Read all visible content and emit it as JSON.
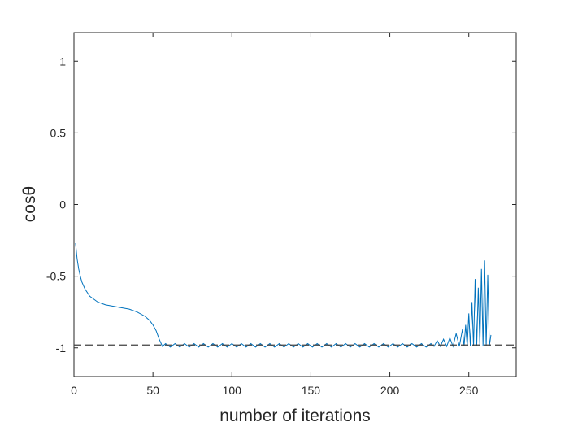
{
  "chart_data": {
    "type": "line",
    "xlabel": "number of iterations",
    "ylabel": "cosθ",
    "xlim": [
      0,
      280
    ],
    "ylim": [
      -1.2,
      1.2
    ],
    "xticks": [
      0,
      50,
      100,
      150,
      200,
      250
    ],
    "yticks": [
      -1,
      -0.5,
      0,
      0.5,
      1
    ],
    "reference_line": {
      "y": -0.98,
      "color": "#404040"
    },
    "x": [
      1,
      2,
      3,
      4,
      5,
      7,
      10,
      15,
      20,
      25,
      30,
      35,
      40,
      45,
      48,
      50,
      52,
      54,
      56,
      58,
      61,
      64,
      67,
      70,
      73,
      76,
      79,
      82,
      85,
      88,
      91,
      94,
      97,
      100,
      103,
      106,
      109,
      112,
      115,
      118,
      121,
      124,
      127,
      130,
      133,
      136,
      139,
      142,
      145,
      148,
      151,
      154,
      157,
      160,
      163,
      166,
      169,
      172,
      175,
      178,
      181,
      184,
      187,
      190,
      193,
      196,
      199,
      202,
      205,
      208,
      211,
      214,
      217,
      220,
      223,
      226,
      228,
      230,
      232,
      234,
      236,
      238,
      240,
      242,
      244,
      246,
      247,
      248,
      249,
      250,
      251,
      252,
      253,
      254,
      255,
      256,
      257,
      258,
      259,
      260,
      261,
      262,
      263,
      264
    ],
    "series": [
      {
        "color": "#0072BD",
        "values": [
          -0.27,
          -0.38,
          -0.45,
          -0.5,
          -0.54,
          -0.59,
          -0.64,
          -0.68,
          -0.7,
          -0.71,
          -0.72,
          -0.73,
          -0.75,
          -0.78,
          -0.81,
          -0.84,
          -0.88,
          -0.94,
          -0.99,
          -0.97,
          -0.995,
          -0.97,
          -0.995,
          -0.97,
          -0.995,
          -0.97,
          -0.995,
          -0.97,
          -0.995,
          -0.97,
          -0.995,
          -0.97,
          -0.995,
          -0.97,
          -0.995,
          -0.97,
          -0.995,
          -0.97,
          -0.995,
          -0.97,
          -0.995,
          -0.97,
          -0.995,
          -0.97,
          -0.995,
          -0.97,
          -0.995,
          -0.97,
          -0.995,
          -0.97,
          -0.995,
          -0.97,
          -0.995,
          -0.97,
          -0.995,
          -0.97,
          -0.995,
          -0.97,
          -0.995,
          -0.97,
          -0.995,
          -0.97,
          -0.995,
          -0.97,
          -0.995,
          -0.97,
          -0.995,
          -0.97,
          -0.995,
          -0.97,
          -0.995,
          -0.97,
          -0.995,
          -0.97,
          -0.995,
          -0.97,
          -0.99,
          -0.95,
          -0.99,
          -0.94,
          -0.99,
          -0.93,
          -0.99,
          -0.9,
          -0.99,
          -0.87,
          -0.99,
          -0.84,
          -0.99,
          -0.76,
          -0.99,
          -0.68,
          -0.99,
          -0.52,
          -0.99,
          -0.58,
          -0.99,
          -0.45,
          -0.99,
          -0.39,
          -0.99,
          -0.49,
          -0.99,
          -0.91
        ]
      }
    ]
  }
}
